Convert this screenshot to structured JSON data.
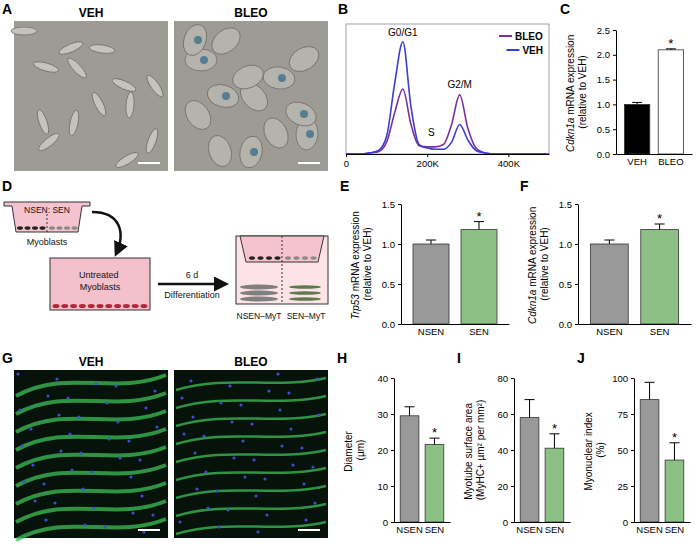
{
  "figure": {
    "letters": [
      "A",
      "B",
      "C",
      "D",
      "E",
      "F",
      "G",
      "H",
      "I",
      "J"
    ],
    "images": [
      {
        "labels": [
          "VEH",
          "BLEO"
        ]
      },
      {
        "labels": [
          "VEH",
          "BLEO"
        ]
      }
    ],
    "schematic": {
      "insert_label": "NSEN: SEN",
      "insert_cells": "Myoblasts",
      "well_cells": "Untreated Myoblasts",
      "duration": "6 d",
      "step": "Differentiation",
      "left_result": "NSEN–MyT",
      "right_result": "SEN–MyT"
    }
  },
  "chart_data": [
    {
      "type": "line",
      "x": [
        0,
        20000,
        40000,
        60000,
        80000,
        100000,
        120000,
        140000,
        160000,
        180000,
        200000,
        220000,
        240000,
        260000,
        280000,
        300000,
        320000,
        340000,
        360000,
        380000,
        400000,
        420000,
        440000,
        460000,
        480000,
        500000
      ],
      "xlim": [
        0,
        500000
      ],
      "xticks": [
        0,
        {
          "value": 200000,
          "label": "200K"
        },
        {
          "value": 400000,
          "label": "400K"
        }
      ],
      "ylim": [
        0,
        110
      ],
      "tick_labels": "x",
      "legend": "top-right",
      "series": [
        {
          "name": "BLEO",
          "color": "#7b2f9e",
          "values": [
            0,
            0,
            0,
            1,
            2,
            10,
            35,
            55,
            25,
            7,
            6,
            6,
            8,
            25,
            50,
            22,
            5,
            1,
            0,
            0,
            0,
            0,
            0,
            0,
            0,
            0
          ]
        },
        {
          "name": "VEH",
          "color": "#3b3bd6",
          "values": [
            0,
            0,
            0,
            1,
            3,
            15,
            60,
            95,
            40,
            8,
            5,
            4,
            4,
            10,
            25,
            12,
            3,
            1,
            0,
            0,
            0,
            0,
            0,
            0,
            0,
            0
          ]
        }
      ],
      "annotations": [
        {
          "text": "G0/G1",
          "x": 140000,
          "y": 100
        },
        {
          "text": "S",
          "x": 210000,
          "y": 15
        },
        {
          "text": "G2/M",
          "x": 280000,
          "y": 56
        }
      ]
    },
    {
      "type": "bar",
      "categories": [
        "VEH",
        "BLEO"
      ],
      "values": [
        1.0,
        2.1
      ],
      "errors": [
        0.04,
        0.02
      ],
      "colors": [
        "#000000",
        "#ffffff"
      ],
      "ylim": [
        0,
        2.5
      ],
      "yticks": [
        {
          "value": 0,
          "label": "0.0"
        },
        {
          "value": 0.5,
          "label": "0.5"
        },
        {
          "value": 1,
          "label": "1.0"
        },
        {
          "value": 1.5,
          "label": "1.5"
        },
        {
          "value": 2,
          "label": "2.0"
        },
        {
          "value": 2.5,
          "label": "2.5"
        }
      ],
      "ylabel": "Cdkn1a mRNA expression (relative to VEH)",
      "annotations": [
        {
          "text": "*",
          "x": "BLEO"
        }
      ]
    },
    {
      "type": "bar",
      "categories": [
        "NSEN",
        "SEN"
      ],
      "values": [
        1.0,
        1.18
      ],
      "errors": [
        0.05,
        0.1
      ],
      "colors": [
        "#999999",
        "#8cc084"
      ],
      "ylim": [
        0,
        1.5
      ],
      "yticks": [
        {
          "value": 0,
          "label": "0.0"
        },
        {
          "value": 0.5,
          "label": "0.5"
        },
        {
          "value": 1,
          "label": "1.0"
        },
        {
          "value": 1.5,
          "label": "1.5"
        }
      ],
      "ylabel": "Trp53 mRNA expression (relative to VEH)",
      "annotations": [
        {
          "text": "*",
          "x": "SEN"
        }
      ]
    },
    {
      "type": "bar",
      "categories": [
        "NSEN",
        "SEN"
      ],
      "values": [
        1.0,
        1.18
      ],
      "errors": [
        0.05,
        0.07
      ],
      "colors": [
        "#999999",
        "#8cc084"
      ],
      "ylim": [
        0,
        1.5
      ],
      "yticks": [
        {
          "value": 0,
          "label": "0.0"
        },
        {
          "value": 0.5,
          "label": "0.5"
        },
        {
          "value": 1,
          "label": "1.0"
        },
        {
          "value": 1.5,
          "label": "1.5"
        }
      ],
      "ylabel": "Cdkn1a mRNA expression (relative to VEH)",
      "annotations": [
        {
          "text": "*",
          "x": "SEN"
        }
      ]
    },
    {
      "type": "bar",
      "categories": [
        "NSEN",
        "SEN"
      ],
      "values": [
        29.5,
        21.5
      ],
      "errors": [
        2.5,
        1.8
      ],
      "colors": [
        "#999999",
        "#8cc084"
      ],
      "ylim": [
        0,
        40
      ],
      "yticks": [
        0,
        10,
        20,
        30,
        40
      ],
      "ylabel": "Diameter (µm)",
      "annotations": [
        {
          "text": "*",
          "x": "SEN"
        }
      ]
    },
    {
      "type": "bar",
      "categories": [
        "NSEN",
        "SEN"
      ],
      "values": [
        58,
        41
      ],
      "errors": [
        10,
        8
      ],
      "colors": [
        "#999999",
        "#8cc084"
      ],
      "ylim": [
        0,
        80
      ],
      "yticks": [
        0,
        20,
        40,
        60,
        80
      ],
      "ylabel": "Myotube surface area (MyHC+ µm² per mm²)",
      "annotations": [
        {
          "text": "*",
          "x": "SEN"
        }
      ]
    },
    {
      "type": "bar",
      "categories": [
        "NSEN",
        "SEN"
      ],
      "values": [
        85,
        43
      ],
      "errors": [
        12,
        12
      ],
      "colors": [
        "#999999",
        "#8cc084"
      ],
      "ylim": [
        0,
        100
      ],
      "yticks": [
        0,
        25,
        50,
        75,
        100
      ],
      "ylabel": "Myonuclear index (%)",
      "annotations": [
        {
          "text": "*",
          "x": "SEN"
        }
      ]
    }
  ]
}
